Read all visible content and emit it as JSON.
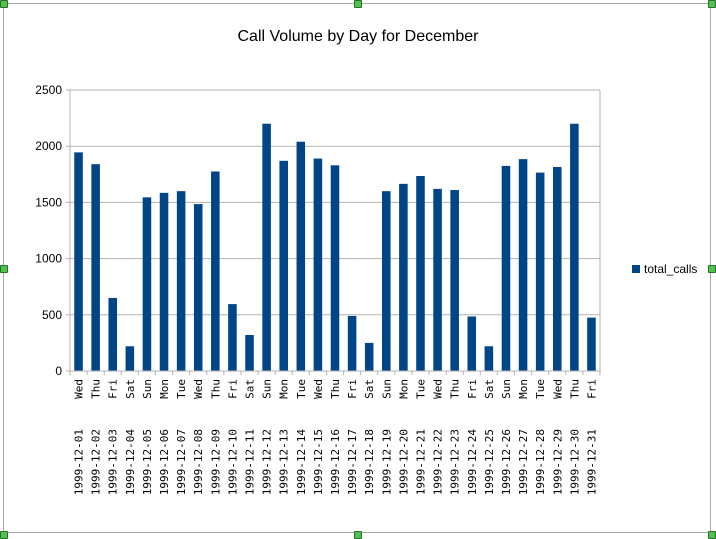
{
  "chart_data": {
    "type": "bar",
    "title": "Call Volume by Day for December",
    "xlabel": "",
    "ylabel": "",
    "ylim": [
      0,
      2500
    ],
    "yticks": [
      0,
      500,
      1000,
      1500,
      2000,
      2500
    ],
    "grid": true,
    "legend_position": "right",
    "bar_color": "#004586",
    "categories": [
      {
        "day": "Wed",
        "date": "1999-12-01"
      },
      {
        "day": "Thu",
        "date": "1999-12-02"
      },
      {
        "day": "Fri",
        "date": "1999-12-03"
      },
      {
        "day": "Sat",
        "date": "1999-12-04"
      },
      {
        "day": "Sun",
        "date": "1999-12-05"
      },
      {
        "day": "Mon",
        "date": "1999-12-06"
      },
      {
        "day": "Tue",
        "date": "1999-12-07"
      },
      {
        "day": "Wed",
        "date": "1999-12-08"
      },
      {
        "day": "Thu",
        "date": "1999-12-09"
      },
      {
        "day": "Fri",
        "date": "1999-12-10"
      },
      {
        "day": "Sat",
        "date": "1999-12-11"
      },
      {
        "day": "Sun",
        "date": "1999-12-12"
      },
      {
        "day": "Mon",
        "date": "1999-12-13"
      },
      {
        "day": "Tue",
        "date": "1999-12-14"
      },
      {
        "day": "Wed",
        "date": "1999-12-15"
      },
      {
        "day": "Thu",
        "date": "1999-12-16"
      },
      {
        "day": "Fri",
        "date": "1999-12-17"
      },
      {
        "day": "Sat",
        "date": "1999-12-18"
      },
      {
        "day": "Sun",
        "date": "1999-12-19"
      },
      {
        "day": "Mon",
        "date": "1999-12-20"
      },
      {
        "day": "Tue",
        "date": "1999-12-21"
      },
      {
        "day": "Wed",
        "date": "1999-12-22"
      },
      {
        "day": "Thu",
        "date": "1999-12-23"
      },
      {
        "day": "Fri",
        "date": "1999-12-24"
      },
      {
        "day": "Sat",
        "date": "1999-12-25"
      },
      {
        "day": "Sun",
        "date": "1999-12-26"
      },
      {
        "day": "Mon",
        "date": "1999-12-27"
      },
      {
        "day": "Tue",
        "date": "1999-12-28"
      },
      {
        "day": "Wed",
        "date": "1999-12-29"
      },
      {
        "day": "Thu",
        "date": "1999-12-30"
      },
      {
        "day": "Fri",
        "date": "1999-12-31"
      }
    ],
    "series": [
      {
        "name": "total_calls",
        "values": [
          1945,
          1840,
          650,
          220,
          1545,
          1585,
          1600,
          1485,
          1775,
          595,
          320,
          2200,
          1870,
          2040,
          1890,
          1830,
          490,
          250,
          1600,
          1665,
          1735,
          1620,
          1610,
          485,
          220,
          1825,
          1885,
          1765,
          1815,
          2200,
          475
        ]
      }
    ]
  }
}
